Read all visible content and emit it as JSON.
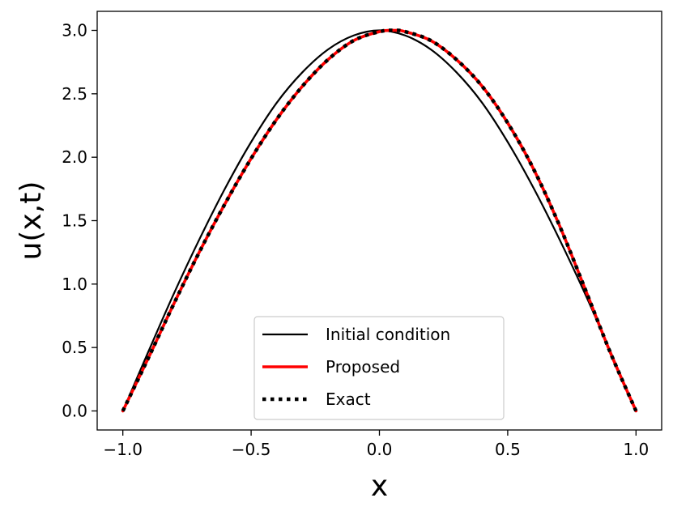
{
  "chart_data": {
    "type": "line",
    "xlabel": "x",
    "ylabel": "u(x,t)",
    "xlim": [
      -1.1,
      1.1
    ],
    "ylim": [
      -0.15,
      3.15
    ],
    "xticks": [
      -1.0,
      -0.5,
      0.0,
      0.5,
      1.0
    ],
    "xtick_labels": [
      "−1.0",
      "−0.5",
      "0.0",
      "0.5",
      "1.0"
    ],
    "yticks": [
      0.0,
      0.5,
      1.0,
      1.5,
      2.0,
      2.5,
      3.0
    ],
    "ytick_labels": [
      "0.0",
      "0.5",
      "1.0",
      "1.5",
      "2.0",
      "2.5",
      "3.0"
    ],
    "grid": false,
    "legend_position": "bottom-center",
    "series": [
      {
        "name": "Initial condition",
        "color": "#000000",
        "style": "solid",
        "x": [
          -1.0,
          -0.9,
          -0.8,
          -0.7,
          -0.6,
          -0.5,
          -0.4,
          -0.3,
          -0.2,
          -0.1,
          0.0,
          0.1,
          0.2,
          0.3,
          0.4,
          0.5,
          0.6,
          0.7,
          0.8,
          0.9,
          1.0
        ],
        "y": [
          0.0,
          0.47,
          0.93,
          1.36,
          1.76,
          2.12,
          2.43,
          2.67,
          2.85,
          2.96,
          3.0,
          2.96,
          2.85,
          2.67,
          2.43,
          2.12,
          1.76,
          1.36,
          0.93,
          0.47,
          0.0
        ]
      },
      {
        "name": "Proposed",
        "color": "#ff0000",
        "style": "solid",
        "x": [
          -1.0,
          -0.9,
          -0.8,
          -0.7,
          -0.6,
          -0.5,
          -0.4,
          -0.3,
          -0.2,
          -0.1,
          0.0,
          0.06,
          0.1,
          0.2,
          0.3,
          0.4,
          0.5,
          0.6,
          0.7,
          0.8,
          0.9,
          1.0
        ],
        "y": [
          0.0,
          0.42,
          0.85,
          1.26,
          1.64,
          1.99,
          2.3,
          2.56,
          2.77,
          2.92,
          2.99,
          3.0,
          2.99,
          2.92,
          2.77,
          2.56,
          2.27,
          1.91,
          1.47,
          0.97,
          0.46,
          0.0
        ]
      },
      {
        "name": "Exact",
        "color": "#000000",
        "style": "dotted",
        "x": [
          -1.0,
          -0.9,
          -0.8,
          -0.7,
          -0.6,
          -0.5,
          -0.4,
          -0.3,
          -0.2,
          -0.1,
          0.0,
          0.06,
          0.1,
          0.2,
          0.3,
          0.4,
          0.5,
          0.6,
          0.7,
          0.8,
          0.9,
          1.0
        ],
        "y": [
          0.0,
          0.42,
          0.85,
          1.26,
          1.64,
          1.99,
          2.3,
          2.56,
          2.77,
          2.92,
          2.99,
          3.0,
          2.99,
          2.92,
          2.77,
          2.56,
          2.27,
          1.91,
          1.47,
          0.97,
          0.46,
          0.0
        ]
      }
    ]
  }
}
